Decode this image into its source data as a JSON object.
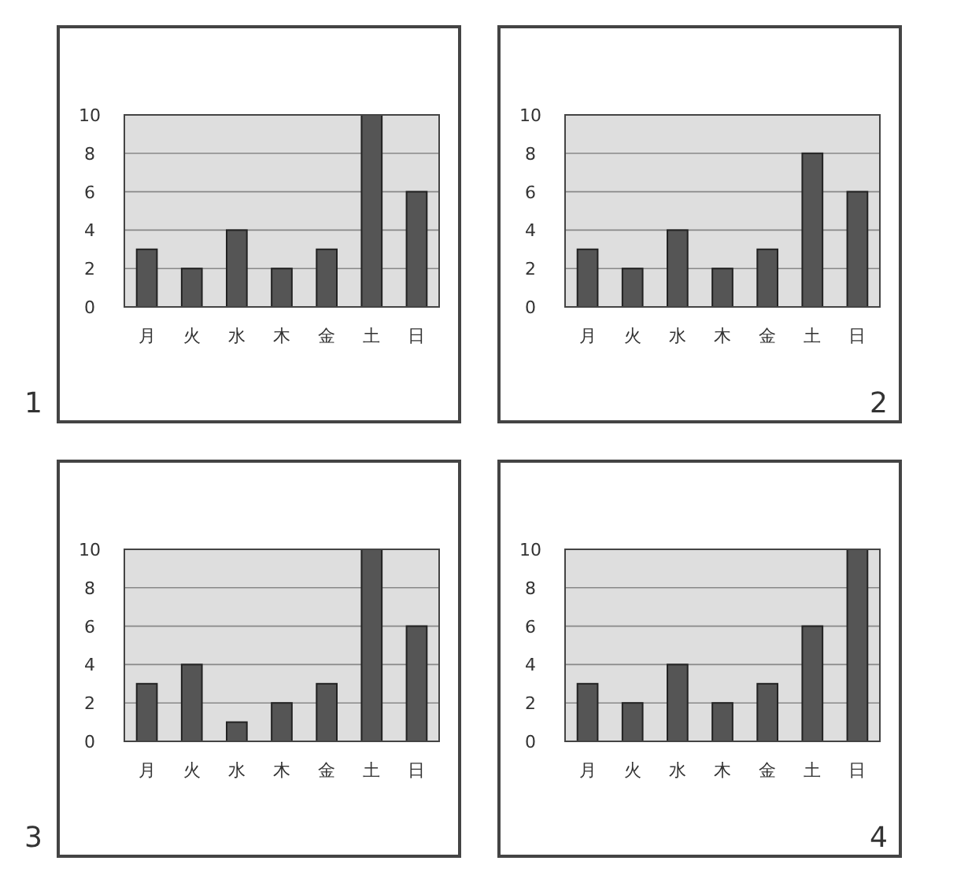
{
  "chart_data": [
    {
      "type": "bar",
      "title": "1",
      "categories": [
        "月",
        "火",
        "水",
        "木",
        "金",
        "土",
        "日"
      ],
      "values": [
        3,
        2,
        4,
        2,
        3,
        10,
        6
      ],
      "color": "#555555",
      "ylim": [
        0,
        10
      ],
      "yticks": [
        0,
        2,
        4,
        6,
        8,
        10
      ],
      "grid": "y"
    },
    {
      "type": "bar",
      "title": "2",
      "categories": [
        "月",
        "火",
        "水",
        "木",
        "金",
        "土",
        "日"
      ],
      "values": [
        3,
        2,
        4,
        2,
        3,
        8,
        6
      ],
      "color": "#555555",
      "ylim": [
        0,
        10
      ],
      "yticks": [
        0,
        2,
        4,
        6,
        8,
        10
      ],
      "grid": "y"
    },
    {
      "type": "bar",
      "title": "3",
      "categories": [
        "月",
        "火",
        "水",
        "木",
        "金",
        "土",
        "日"
      ],
      "values": [
        3,
        4,
        1,
        2,
        3,
        10,
        6
      ],
      "color": "#555555",
      "ylim": [
        0,
        10
      ],
      "yticks": [
        0,
        2,
        4,
        6,
        8,
        10
      ],
      "grid": "y"
    },
    {
      "type": "bar",
      "title": "4",
      "categories": [
        "月",
        "火",
        "水",
        "木",
        "金",
        "土",
        "日"
      ],
      "values": [
        3,
        2,
        4,
        2,
        3,
        6,
        10
      ],
      "color": "#555555",
      "ylim": [
        0,
        10
      ],
      "yticks": [
        0,
        2,
        4,
        6,
        8,
        10
      ],
      "grid": "y"
    }
  ]
}
